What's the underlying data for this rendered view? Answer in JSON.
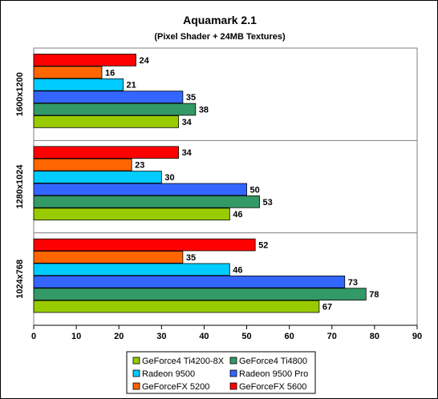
{
  "chart_data": {
    "type": "bar",
    "orientation": "horizontal",
    "title": "Aquamark 2.1",
    "subtitle": "(Pixel Shader + 24MB Textures)",
    "categories": [
      "1600x1200",
      "1280x1024",
      "1024x768"
    ],
    "series": [
      {
        "name": "GeForce4 Ti4200-8X",
        "color": "#99cc00",
        "values": [
          34,
          46,
          67
        ]
      },
      {
        "name": "GeForce4 Ti4800",
        "color": "#339966",
        "values": [
          38,
          53,
          78
        ]
      },
      {
        "name": "Radeon 9500",
        "color": "#00ccff",
        "values": [
          21,
          30,
          46
        ]
      },
      {
        "name": "Radeon 9500 Pro",
        "color": "#3366ff",
        "values": [
          35,
          50,
          73
        ]
      },
      {
        "name": "GeForceFX 5200",
        "color": "#ff6600",
        "values": [
          16,
          23,
          35
        ]
      },
      {
        "name": "GeForceFX 5600",
        "color": "#ff0000",
        "values": [
          24,
          34,
          52
        ]
      }
    ],
    "xlim": [
      0,
      90
    ],
    "xticks": [
      0,
      10,
      20,
      30,
      40,
      50,
      60,
      70,
      80,
      90
    ],
    "grid": "horizontal separators only",
    "legend_position": "bottom",
    "bar_order_top_to_bottom": [
      "GeForceFX 5600",
      "GeForceFX 5200",
      "Radeon 9500",
      "Radeon 9500 Pro",
      "GeForce4 Ti4800",
      "GeForce4 Ti4200-8X"
    ],
    "legend_order": [
      "GeForce4 Ti4200-8X",
      "GeForce4 Ti4800",
      "Radeon 9500",
      "Radeon 9500 Pro",
      "GeForceFX 5200",
      "GeForceFX 5600"
    ]
  }
}
